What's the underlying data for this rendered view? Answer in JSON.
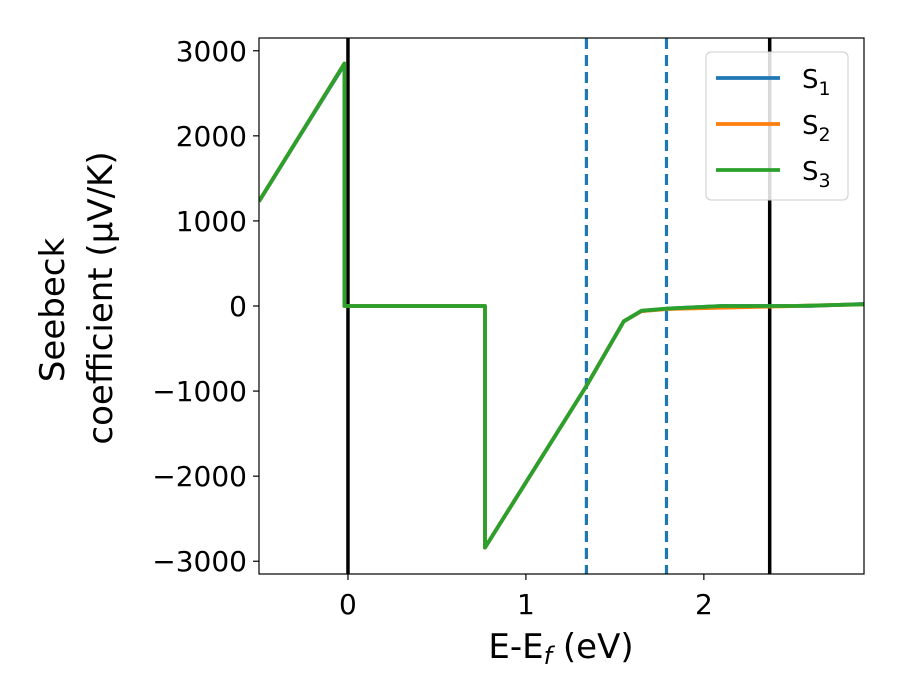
{
  "chart_data": {
    "type": "line",
    "title": "",
    "xlabel": "E-E_f (eV)",
    "ylabel_line1": "Seebeck",
    "ylabel_line2": "coefficient  (μV/K)",
    "xlim": [
      -0.5,
      2.9
    ],
    "ylim": [
      -3150,
      3150
    ],
    "xticks": [
      0,
      1,
      2
    ],
    "yticks": [
      -3000,
      -2000,
      -1000,
      0,
      1000,
      2000,
      3000
    ],
    "ytick_labels": [
      "−3000",
      "−2000",
      "−1000",
      "0",
      "1000",
      "2000",
      "3000"
    ],
    "grid": false,
    "legend_position": "top-right",
    "vertical_lines": [
      {
        "x": 0.0,
        "style": "solid",
        "color": "#000000"
      },
      {
        "x": 2.37,
        "style": "solid",
        "color": "#000000"
      },
      {
        "x": 1.34,
        "style": "dashed",
        "color": "#1f77b4"
      },
      {
        "x": 1.79,
        "style": "dashed",
        "color": "#1f77b4"
      }
    ],
    "series": [
      {
        "name": "S1",
        "color": "#1f77b4",
        "points": [
          [
            -0.5,
            1230
          ],
          [
            -0.02,
            2840
          ],
          [
            -0.02,
            0
          ],
          [
            0.77,
            0
          ],
          [
            0.77,
            -2840
          ],
          [
            1.34,
            -940
          ],
          [
            1.55,
            -180
          ],
          [
            1.65,
            -60
          ],
          [
            1.8,
            -30
          ],
          [
            2.1,
            0
          ],
          [
            2.6,
            0
          ],
          [
            2.9,
            25
          ]
        ]
      },
      {
        "name": "S2",
        "color": "#ff7f0e",
        "points": [
          [
            -0.5,
            1230
          ],
          [
            -0.02,
            2850
          ],
          [
            -0.02,
            0
          ],
          [
            0.77,
            0
          ],
          [
            0.77,
            -2840
          ],
          [
            1.34,
            -940
          ],
          [
            1.55,
            -180
          ],
          [
            1.65,
            -60
          ],
          [
            1.8,
            -35
          ],
          [
            2.1,
            -20
          ],
          [
            2.4,
            -5
          ],
          [
            2.9,
            20
          ]
        ]
      },
      {
        "name": "S3",
        "color": "#2ca02c",
        "points": [
          [
            -0.5,
            1230
          ],
          [
            -0.02,
            2850
          ],
          [
            -0.02,
            0
          ],
          [
            0.77,
            0
          ],
          [
            0.77,
            -2840
          ],
          [
            1.34,
            -940
          ],
          [
            1.55,
            -180
          ],
          [
            1.65,
            -55
          ],
          [
            1.8,
            -30
          ],
          [
            2.1,
            0
          ],
          [
            2.5,
            0
          ],
          [
            2.9,
            20
          ]
        ]
      }
    ]
  }
}
